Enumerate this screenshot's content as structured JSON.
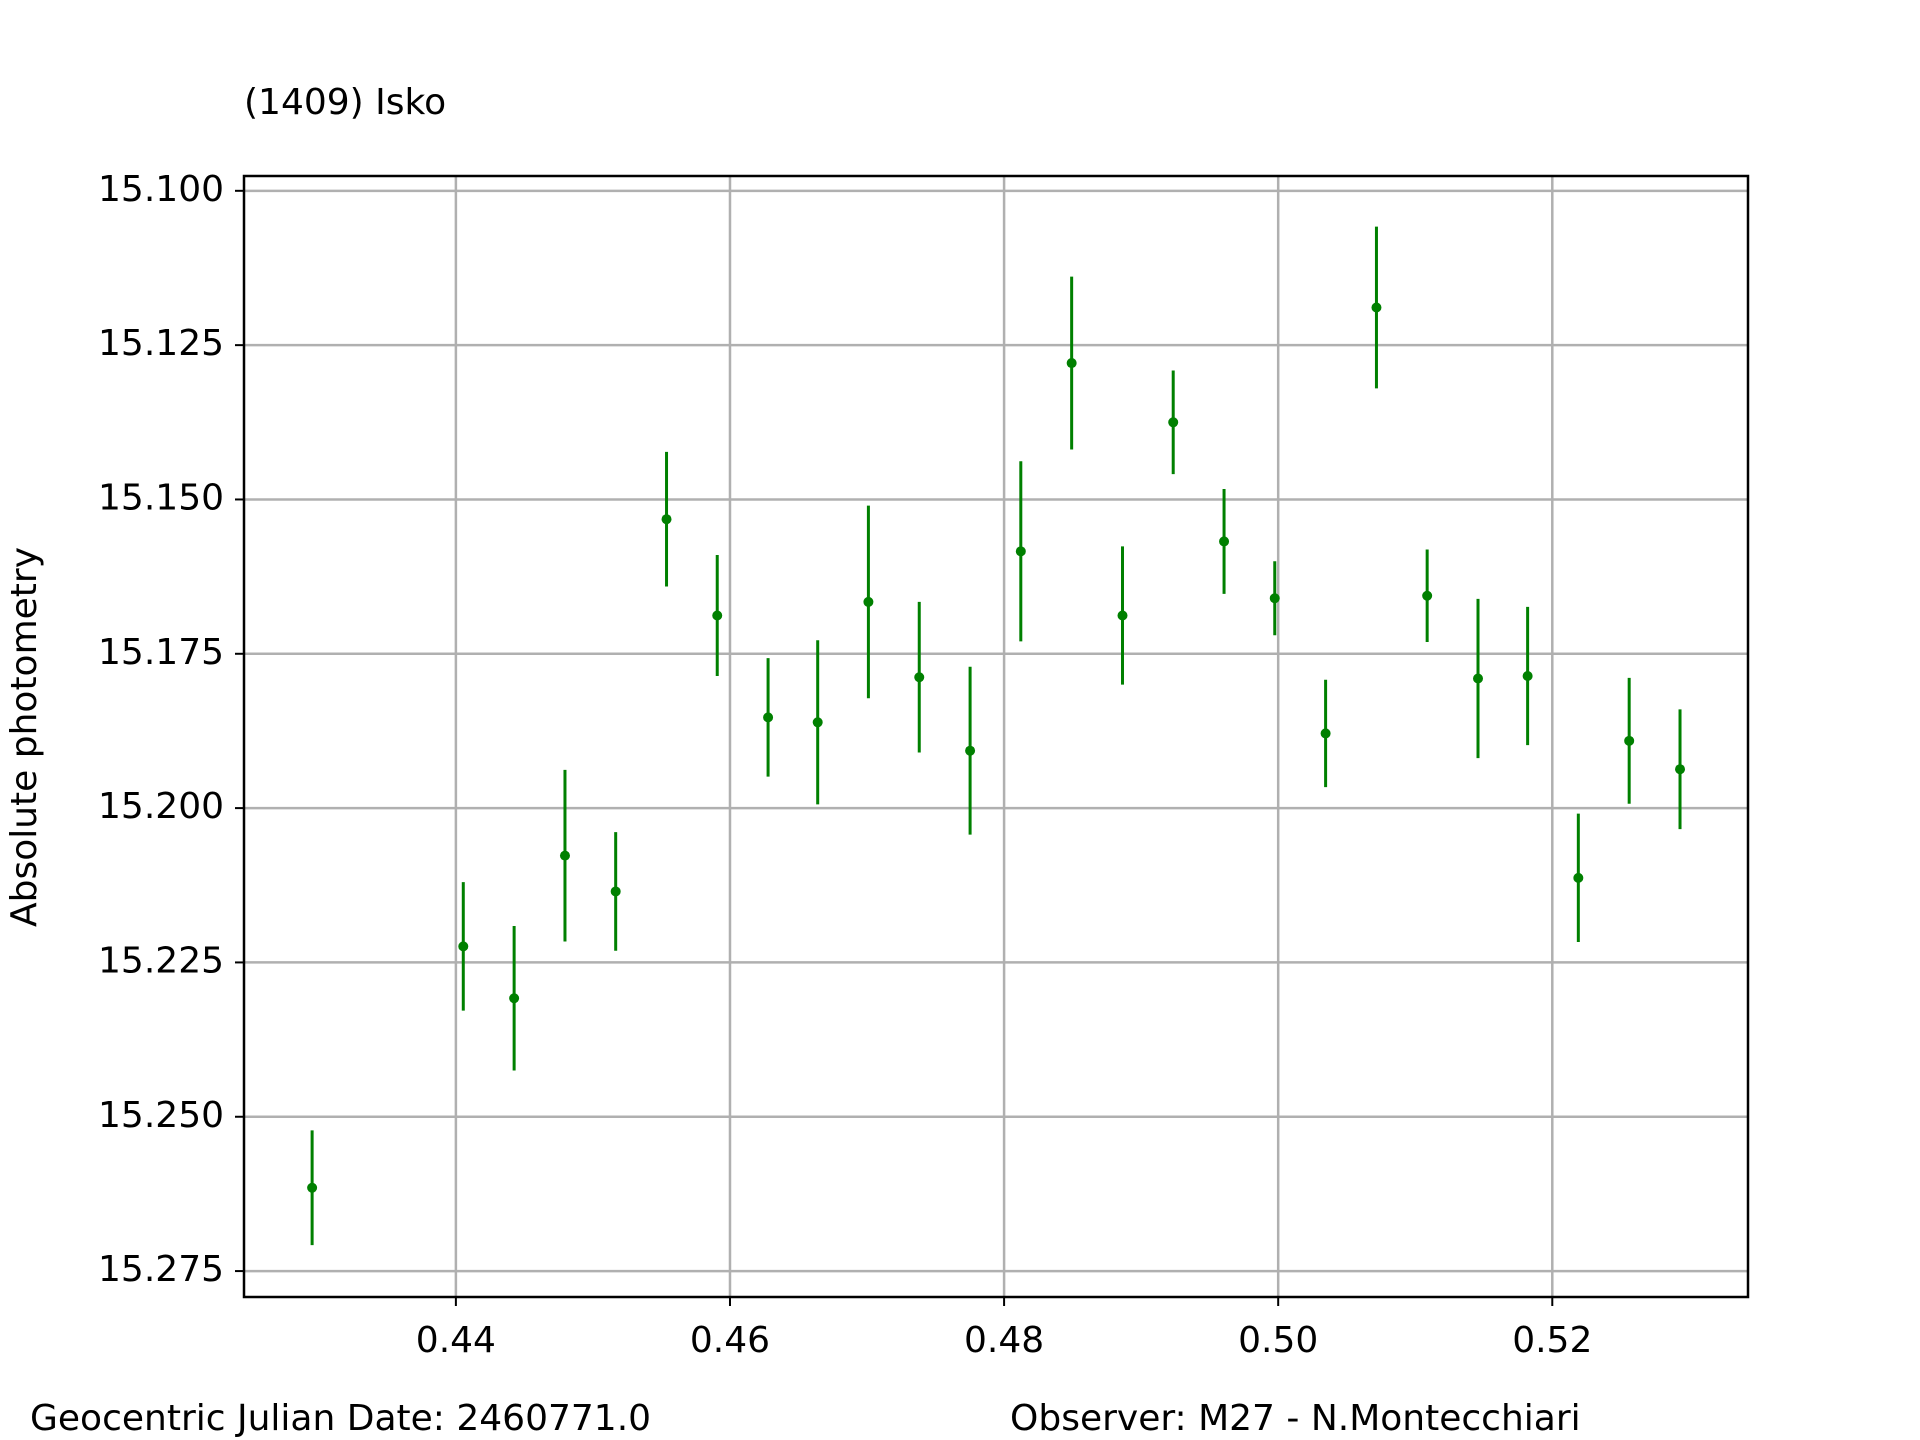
{
  "chart_data": {
    "type": "errorbar",
    "title": "(1409) Isko",
    "y_label": "Absolute photometry",
    "footer_left": "Geocentric Julian Date: 2460771.0",
    "footer_right": "Observer: M27 - N.Montecchiari",
    "color": "#008000",
    "grid": true,
    "xlim": [
      0.42454,
      0.53428
    ],
    "ylim": [
      15.2792,
      15.0976
    ],
    "xticks": [
      0.44,
      0.46,
      0.48,
      {
        "value": 0.5,
        "label": "0.50"
      },
      0.52
    ],
    "yticks": [
      {
        "value": 15.1,
        "label": "15.100"
      },
      15.125,
      {
        "value": 15.15,
        "label": "15.150"
      },
      15.175,
      {
        "value": 15.2,
        "label": "15.200"
      },
      15.225,
      {
        "value": 15.25,
        "label": "15.250"
      },
      15.275
    ],
    "x": [
      0.42951,
      0.44054,
      0.44425,
      0.44796,
      0.45166,
      0.45537,
      0.45907,
      0.46278,
      0.4664,
      0.4701,
      0.47381,
      0.47752,
      0.48122,
      0.48493,
      0.48864,
      0.49234,
      0.49605,
      0.49975,
      0.50346,
      0.50717,
      0.51087,
      0.51458,
      0.5182,
      0.5219,
      0.52561,
      0.52932
    ],
    "values": [
      15.2615,
      15.2224,
      15.2308,
      15.2077,
      15.2135,
      15.1532,
      15.1688,
      15.1853,
      15.1861,
      15.1666,
      15.1788,
      15.1907,
      15.1584,
      15.1279,
      15.1688,
      15.1375,
      15.1568,
      15.166,
      15.1879,
      15.1189,
      15.1656,
      15.179,
      15.1786,
      15.2113,
      15.1891,
      15.1937
    ],
    "errors": [
      0.0093,
      0.0104,
      0.0117,
      0.0139,
      0.0096,
      0.0109,
      0.0098,
      0.0096,
      0.0133,
      0.0156,
      0.0122,
      0.0136,
      0.0146,
      0.014,
      0.0112,
      0.0084,
      0.0085,
      0.006,
      0.0087,
      0.0131,
      0.0075,
      0.0129,
      0.0112,
      0.0104,
      0.0102,
      0.0097
    ]
  }
}
